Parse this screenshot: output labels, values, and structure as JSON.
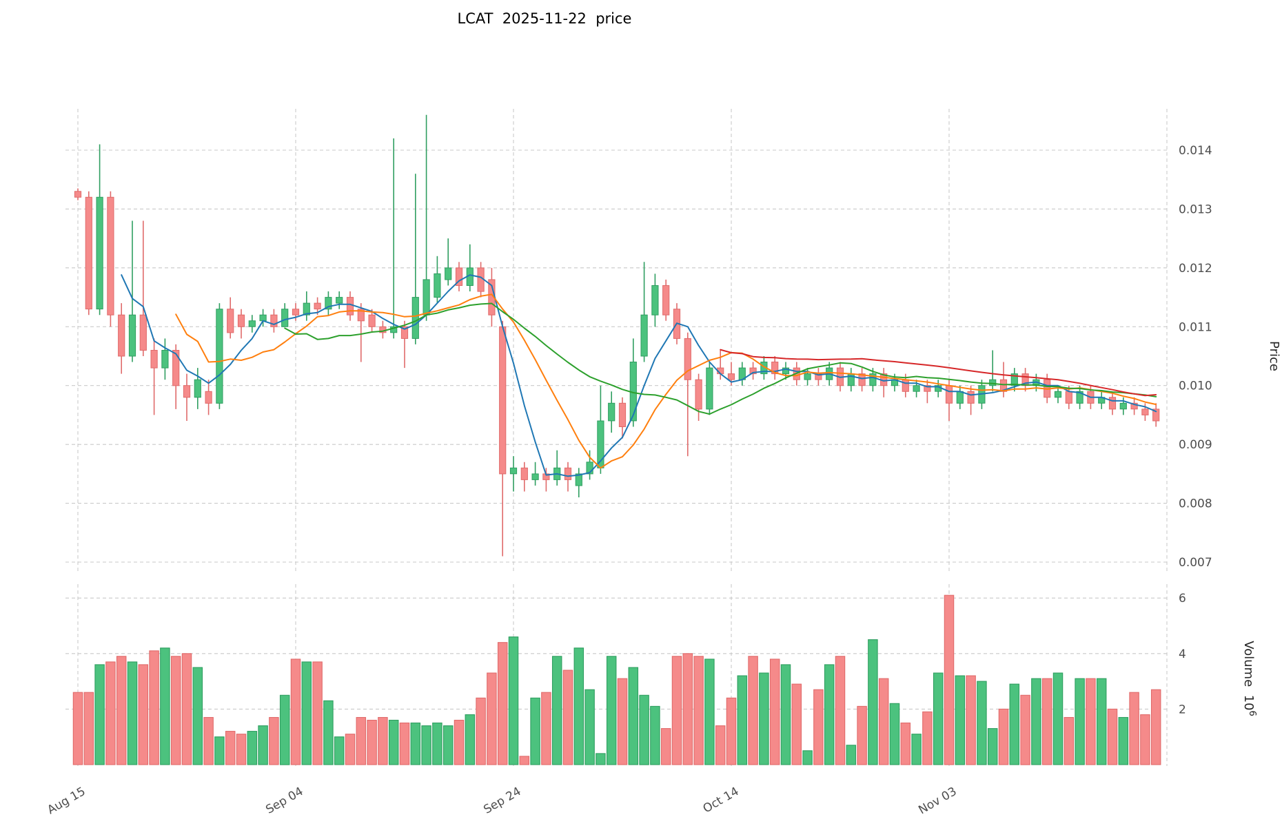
{
  "title": "LCAT  2025-11-22  price",
  "axes": {
    "price_label": "Price",
    "volume_label_base": "Volume  10",
    "volume_label_exp": "6",
    "price_ticks": [
      "0.007",
      "0.008",
      "0.009",
      "0.010",
      "0.011",
      "0.012",
      "0.013",
      "0.014"
    ],
    "volume_ticks": [
      "2",
      "4",
      "6"
    ],
    "x_ticks": [
      {
        "label": "Aug 15",
        "day": 0
      },
      {
        "label": "Sep 04",
        "day": 20
      },
      {
        "label": "Sep 24",
        "day": 40
      },
      {
        "label": "Oct 14",
        "day": 60
      },
      {
        "label": "Nov 03",
        "day": 80
      }
    ]
  },
  "colors": {
    "up": "#4cc27e",
    "up_edge": "#2f9e60",
    "down": "#f58a8a",
    "down_edge": "#e06a6a",
    "mav": [
      "#1f77b4",
      "#ff7f0e",
      "#2ca02c",
      "#d62728"
    ],
    "grid": "#c9c9c9",
    "tick_text": "#4d4d4d"
  },
  "chart_data": {
    "type": "candlestick",
    "symbol": "LCAT",
    "as_of_date": "2025-11-22",
    "start_date": "2025-08-15",
    "freq": "daily",
    "mav_periods": [
      5,
      10,
      20,
      60
    ],
    "price_axis_range": [
      0.007,
      0.014
    ],
    "volume_unit": 1000000,
    "volume_axis_ticks": [
      2,
      4,
      6
    ],
    "open": [
      0.0133,
      0.0132,
      0.0113,
      0.0132,
      0.0112,
      0.0105,
      0.0112,
      0.0106,
      0.0103,
      0.0106,
      0.01,
      0.0098,
      0.0099,
      0.0097,
      0.0113,
      0.0112,
      0.011,
      0.0111,
      0.0112,
      0.011,
      0.0113,
      0.0112,
      0.0114,
      0.0113,
      0.0114,
      0.0115,
      0.0113,
      0.0112,
      0.011,
      0.0109,
      0.011,
      0.0108,
      0.0112,
      0.0115,
      0.0118,
      0.012,
      0.0117,
      0.012,
      0.0118,
      0.011,
      0.0085,
      0.0086,
      0.0084,
      0.0085,
      0.0084,
      0.0086,
      0.0083,
      0.0085,
      0.0086,
      0.0094,
      0.0097,
      0.0094,
      0.0105,
      0.0112,
      0.0117,
      0.0113,
      0.0108,
      0.0101,
      0.0096,
      0.0103,
      0.0102,
      0.0101,
      0.0103,
      0.0102,
      0.0104,
      0.0102,
      0.0103,
      0.0101,
      0.0102,
      0.0101,
      0.0103,
      0.01,
      0.0102,
      0.01,
      0.0102,
      0.01,
      0.0101,
      0.0099,
      0.01,
      0.0099,
      0.01,
      0.0097,
      0.0099,
      0.0097,
      0.01,
      0.0101,
      0.01,
      0.0102,
      0.01,
      0.0101,
      0.0098,
      0.0099,
      0.0097,
      0.0099,
      0.0097,
      0.0098,
      0.0096,
      0.0097,
      0.0096,
      0.0096
    ],
    "high": [
      0.01335,
      0.0133,
      0.0141,
      0.0133,
      0.0114,
      0.0128,
      0.0128,
      0.0108,
      0.0108,
      0.0107,
      0.0102,
      0.0103,
      0.0101,
      0.0114,
      0.0115,
      0.0113,
      0.0112,
      0.0113,
      0.0113,
      0.0114,
      0.0114,
      0.0116,
      0.0115,
      0.0116,
      0.0116,
      0.0116,
      0.0114,
      0.0113,
      0.0111,
      0.0142,
      0.0111,
      0.0136,
      0.0146,
      0.0122,
      0.0125,
      0.0121,
      0.0124,
      0.0121,
      0.012,
      0.0111,
      0.0088,
      0.0087,
      0.0087,
      0.0086,
      0.0089,
      0.0087,
      0.0086,
      0.0089,
      0.01,
      0.0099,
      0.0098,
      0.0108,
      0.0121,
      0.0119,
      0.0118,
      0.0114,
      0.0109,
      0.0102,
      0.0104,
      0.0106,
      0.0104,
      0.0104,
      0.0104,
      0.0105,
      0.0105,
      0.0104,
      0.0104,
      0.0103,
      0.0103,
      0.0104,
      0.0104,
      0.0103,
      0.0103,
      0.0103,
      0.0103,
      0.0102,
      0.0102,
      0.0101,
      0.0101,
      0.0101,
      0.0101,
      0.01,
      0.01,
      0.0101,
      0.0106,
      0.0104,
      0.0103,
      0.0103,
      0.0102,
      0.0102,
      0.01,
      0.01,
      0.01,
      0.01,
      0.0099,
      0.0099,
      0.0098,
      0.0098,
      0.0097,
      0.0097
    ],
    "low": [
      0.01315,
      0.0112,
      0.0112,
      0.011,
      0.0102,
      0.0104,
      0.0105,
      0.0095,
      0.0101,
      0.0096,
      0.0094,
      0.0096,
      0.0095,
      0.0096,
      0.0108,
      0.0108,
      0.0109,
      0.011,
      0.0109,
      0.011,
      0.0111,
      0.0111,
      0.0112,
      0.0112,
      0.0113,
      0.0111,
      0.0104,
      0.0109,
      0.0108,
      0.0108,
      0.0103,
      0.0107,
      0.0111,
      0.0114,
      0.0117,
      0.0116,
      0.0116,
      0.0115,
      0.011,
      0.0071,
      0.0082,
      0.0082,
      0.0083,
      0.0082,
      0.0083,
      0.0082,
      0.0081,
      0.0084,
      0.0085,
      0.0092,
      0.0091,
      0.0093,
      0.0104,
      0.011,
      0.0111,
      0.0107,
      0.0088,
      0.0094,
      0.0095,
      0.0101,
      0.01,
      0.01,
      0.0101,
      0.0101,
      0.0101,
      0.0101,
      0.01,
      0.01,
      0.01,
      0.01,
      0.0099,
      0.0099,
      0.0099,
      0.0099,
      0.0098,
      0.0099,
      0.0098,
      0.0098,
      0.0097,
      0.0098,
      0.0094,
      0.0096,
      0.0095,
      0.0096,
      0.0099,
      0.0098,
      0.0099,
      0.0099,
      0.0099,
      0.0097,
      0.0097,
      0.0096,
      0.0096,
      0.0096,
      0.0096,
      0.0095,
      0.0095,
      0.0095,
      0.0094,
      0.0093
    ],
    "close": [
      0.0132,
      0.0113,
      0.0132,
      0.0112,
      0.0105,
      0.0112,
      0.0106,
      0.0103,
      0.0106,
      0.01,
      0.0098,
      0.0101,
      0.0097,
      0.0113,
      0.0109,
      0.011,
      0.0111,
      0.0112,
      0.011,
      0.0113,
      0.0112,
      0.0114,
      0.0113,
      0.0115,
      0.0115,
      0.0112,
      0.0111,
      0.011,
      0.0109,
      0.011,
      0.0108,
      0.0115,
      0.0118,
      0.0119,
      0.012,
      0.0117,
      0.012,
      0.0116,
      0.0112,
      0.0085,
      0.0086,
      0.0084,
      0.0085,
      0.0084,
      0.0086,
      0.0084,
      0.0085,
      0.0087,
      0.0094,
      0.0097,
      0.0093,
      0.0104,
      0.0112,
      0.0117,
      0.0112,
      0.0108,
      0.0101,
      0.0096,
      0.0103,
      0.0102,
      0.0101,
      0.0103,
      0.0102,
      0.0104,
      0.0102,
      0.0103,
      0.0101,
      0.0102,
      0.0101,
      0.0103,
      0.01,
      0.0102,
      0.01,
      0.0102,
      0.01,
      0.0101,
      0.0099,
      0.01,
      0.0099,
      0.01,
      0.0097,
      0.0099,
      0.0097,
      0.01,
      0.0101,
      0.0099,
      0.0102,
      0.01,
      0.0101,
      0.0098,
      0.0099,
      0.0097,
      0.0099,
      0.0097,
      0.0098,
      0.0096,
      0.0097,
      0.0096,
      0.0095,
      0.0094
    ],
    "volume": [
      2.6,
      2.6,
      3.6,
      3.7,
      3.9,
      3.7,
      3.6,
      4.1,
      4.2,
      3.9,
      4.0,
      3.5,
      1.7,
      1.0,
      1.2,
      1.1,
      1.2,
      1.4,
      1.7,
      2.5,
      3.8,
      3.7,
      3.7,
      2.3,
      1.0,
      1.1,
      1.7,
      1.6,
      1.7,
      1.6,
      1.5,
      1.5,
      1.4,
      1.5,
      1.4,
      1.6,
      1.8,
      2.4,
      3.3,
      4.4,
      4.6,
      0.3,
      2.4,
      2.6,
      3.9,
      3.4,
      4.2,
      2.7,
      0.4,
      3.9,
      3.1,
      3.5,
      2.5,
      2.1,
      1.3,
      3.9,
      4.0,
      3.9,
      3.8,
      1.4,
      2.4,
      3.2,
      3.9,
      3.3,
      3.8,
      3.6,
      2.9,
      0.5,
      2.7,
      3.6,
      3.9,
      0.7,
      2.1,
      4.5,
      3.1,
      2.2,
      1.5,
      1.1,
      1.9,
      3.3,
      6.1,
      3.2,
      3.2,
      3.0,
      1.3,
      2.0,
      2.9,
      2.5,
      3.1,
      3.1,
      3.3,
      1.7,
      3.1,
      3.1,
      3.1,
      2.0,
      1.7,
      2.6,
      1.8,
      2.7
    ]
  }
}
